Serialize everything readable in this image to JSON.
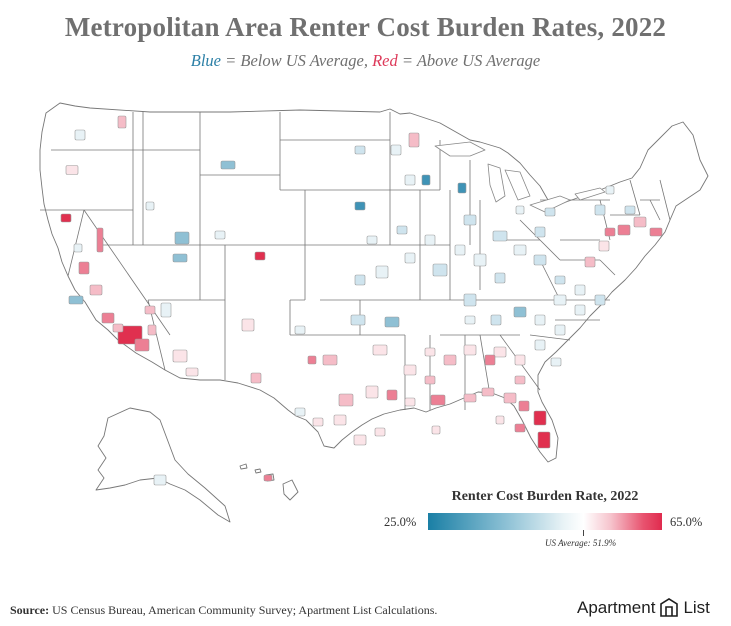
{
  "title": "Metropolitan Area Renter Cost Burden Rates, 2022",
  "subtitle": {
    "blue_word": "Blue",
    "blue_text": " = Below US Average, ",
    "red_word": "Red",
    "red_text": " = Above US Average"
  },
  "legend": {
    "title": "Renter Cost Burden Rate, 2022",
    "min_label": "25.0%",
    "max_label": "65.0%",
    "average_label": "US Average: 51.9%",
    "min_value": 25.0,
    "max_value": 65.0,
    "average_value": 51.9,
    "color_low": "#1a7fa5",
    "color_mid": "#ffffff",
    "color_high": "#e02b4e"
  },
  "source": {
    "label": "Source:",
    "text": " US Census Bureau, American Community Survey; Apartment List Calculations."
  },
  "brand": {
    "name_part1": "Apartment",
    "name_part2": "List"
  },
  "colors": {
    "state_border": "#777777",
    "county_border": "#bdbdbd",
    "background": "#ffffff"
  }
}
